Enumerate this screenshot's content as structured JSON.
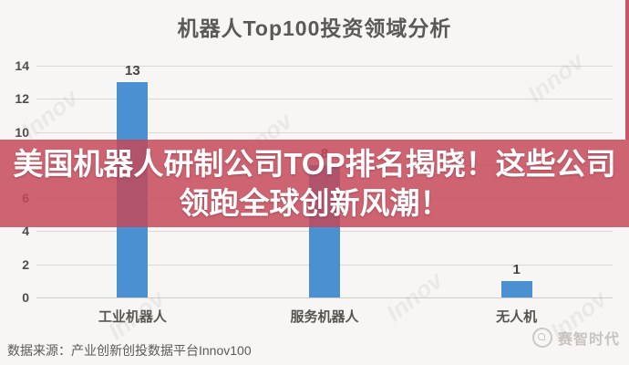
{
  "page": {
    "background": "#f7f6f4"
  },
  "chart_data": {
    "type": "bar",
    "title": "机器人Top100投资领域分析",
    "categories": [
      "工业机器人",
      "服务机器人",
      "无人机"
    ],
    "values": [
      13,
      8,
      1
    ],
    "xlabel": "",
    "ylabel": "",
    "ylim": [
      0,
      14
    ],
    "yticks": [
      0,
      2,
      4,
      6,
      8,
      10,
      12,
      14
    ],
    "grid": true,
    "legend": false,
    "bar_color": "#4b90d0",
    "value_labels": [
      13,
      8,
      1
    ]
  },
  "banner": {
    "line1": "美国机器人研制公司TOP排名揭晓！这些公司",
    "line2": "领跑全球创新风潮！",
    "bg_color": "rgba(198,72,88,0.84)",
    "text_color": "#ffffff"
  },
  "footer": {
    "source": "数据来源：产业创新创投数据平台Innov100",
    "logo_text": "赛智时代"
  },
  "watermark": {
    "text": "Innov"
  },
  "accent": {
    "stripe_color": "#c9556b"
  }
}
